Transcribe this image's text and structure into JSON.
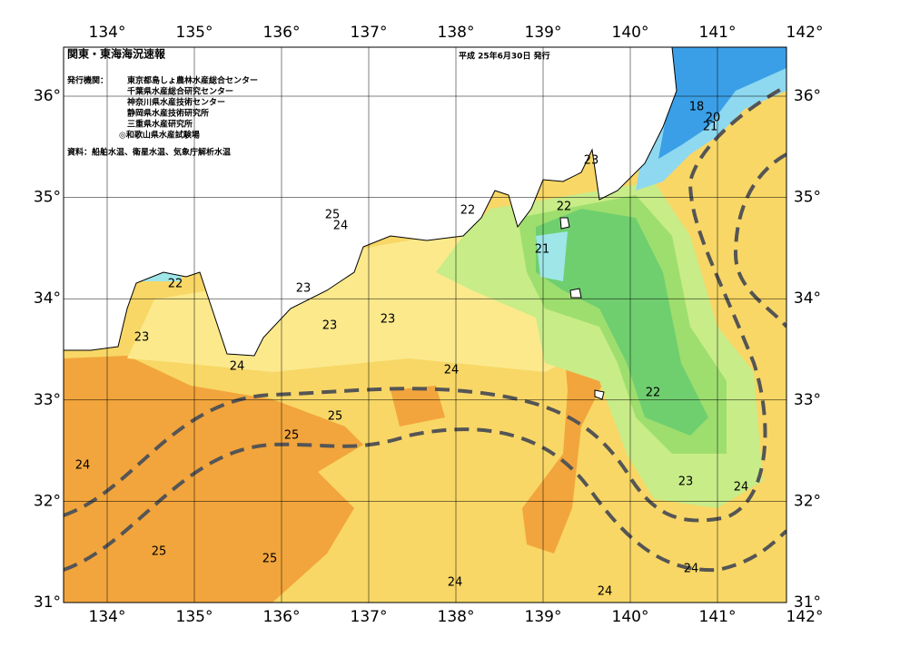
{
  "header": {
    "title": "関東・東海海況速報",
    "issued": "平成 25年6月30日 発行",
    "issuers_label": "発行機関：",
    "issuers": [
      "東京都島しょ農林水産総合センター",
      "千葉県水産総合研究センター",
      "神奈川県水産技術センター",
      "静岡県水産技術研究所",
      "三重県水産研究所",
      "◎和歌山県水産試験場"
    ],
    "source": "資料：船舶水温、衛星水温、気象庁解析水温"
  },
  "longitude_labels": [
    "134°",
    "135°",
    "136°",
    "137°",
    "138°",
    "139°",
    "140°",
    "141°",
    "142°"
  ],
  "latitude_labels": [
    "36°",
    "35°",
    "34°",
    "33°",
    "32°",
    "31°"
  ],
  "contour_labels": [
    "18",
    "20",
    "21",
    "23",
    "22",
    "22",
    "25",
    "24",
    "21",
    "22",
    "23",
    "23",
    "23",
    "23",
    "24",
    "24",
    "22",
    "25",
    "25",
    "24",
    "23",
    "24",
    "25",
    "25",
    "24",
    "24",
    "24"
  ]
}
